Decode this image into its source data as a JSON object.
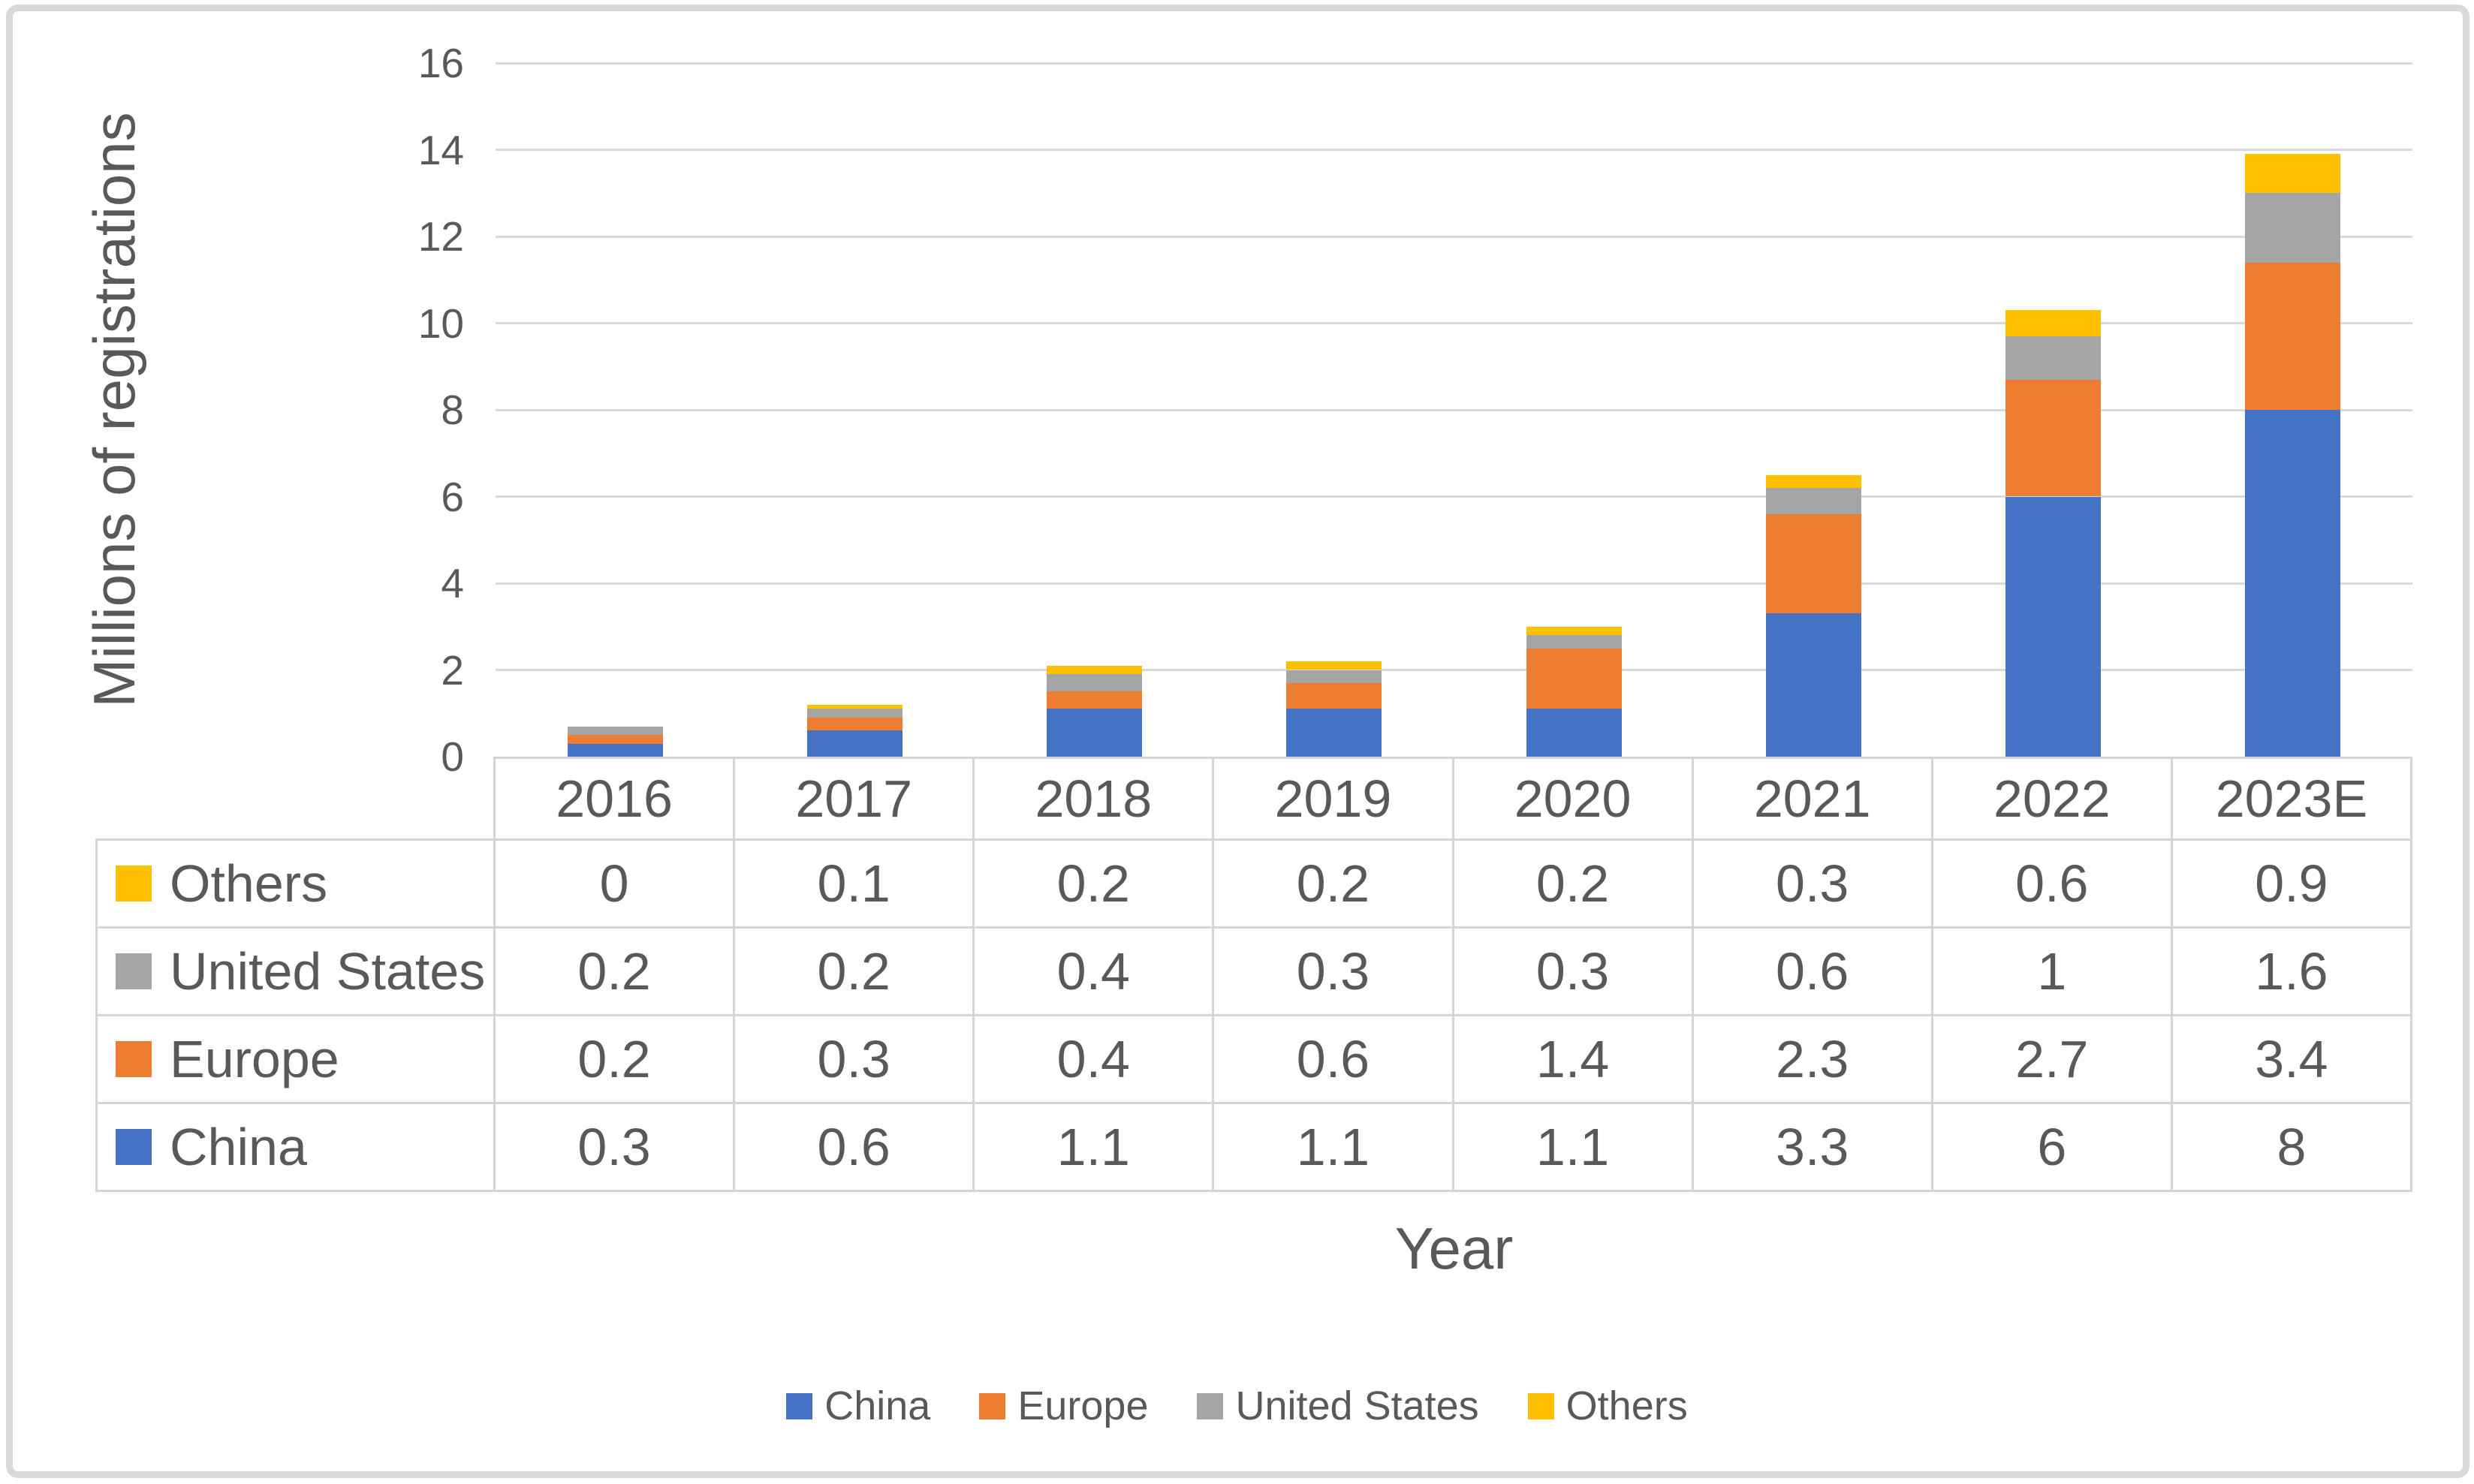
{
  "chart_data": {
    "type": "bar",
    "stacked": true,
    "title": "",
    "xlabel": "Year",
    "ylabel": "Millions of registrations",
    "categories": [
      "2016",
      "2017",
      "2018",
      "2019",
      "2020",
      "2021",
      "2022",
      "2023E"
    ],
    "series": [
      {
        "name": "China",
        "color": "#4472C4",
        "values": [
          0.3,
          0.6,
          1.1,
          1.1,
          1.1,
          3.3,
          6,
          8
        ]
      },
      {
        "name": "Europe",
        "color": "#ED7D31",
        "values": [
          0.2,
          0.3,
          0.4,
          0.6,
          1.4,
          2.3,
          2.7,
          3.4
        ]
      },
      {
        "name": "United States",
        "color": "#A5A5A5",
        "values": [
          0.2,
          0.2,
          0.4,
          0.3,
          0.3,
          0.6,
          1,
          1.6
        ]
      },
      {
        "name": "Others",
        "color": "#FFC000",
        "values": [
          0,
          0.1,
          0.2,
          0.2,
          0.2,
          0.3,
          0.6,
          0.9
        ]
      }
    ],
    "ylim": [
      0,
      16
    ],
    "ytick_step": 2,
    "yticks": [
      0,
      2,
      4,
      6,
      8,
      10,
      12,
      14,
      16
    ],
    "grid": true,
    "legend_position": "bottom",
    "legend_order": [
      "China",
      "Europe",
      "United States",
      "Others"
    ],
    "table_row_order": [
      "Others",
      "United States",
      "Europe",
      "China"
    ]
  },
  "colors": {
    "text": "#595959",
    "gridline": "#D9D9D9",
    "table_border": "#D5D5D5",
    "frame_border": "#D9D9D9",
    "background": "#FFFFFF"
  }
}
